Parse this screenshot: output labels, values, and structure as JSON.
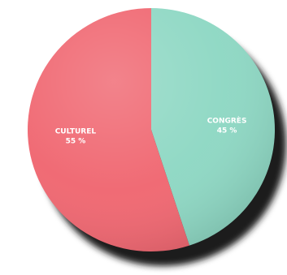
{
  "chart_data": {
    "type": "pie",
    "title": "",
    "slices": [
      {
        "label": "CONGRÈS",
        "value": 45,
        "value_label": "45 %",
        "color": "#8fd8c4"
      },
      {
        "label": "CULTUREL",
        "value": 55,
        "value_label": "55 %",
        "color": "#f06872"
      }
    ],
    "start_angle_deg": 0,
    "direction": "clockwise",
    "style": "3d-tilted-disc-with-shadow",
    "legend": "none"
  }
}
